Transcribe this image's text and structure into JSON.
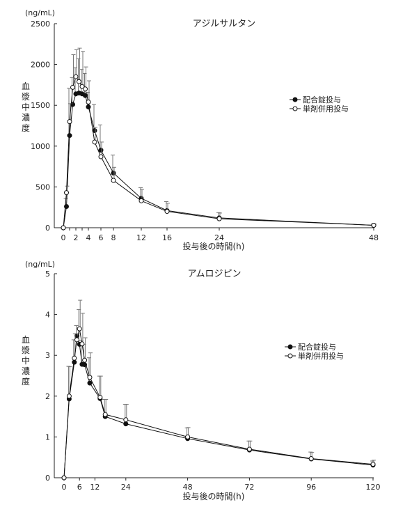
{
  "chart_data": [
    {
      "type": "line",
      "title": "アジルサルタン",
      "unit_label": "(ng/mL)",
      "ylabel": "血漿中濃度",
      "xlabel": "投与後の時間(h)",
      "xlim": [
        0,
        48
      ],
      "ylim": [
        0,
        2500
      ],
      "x_ticks": [
        0,
        1,
        2,
        3,
        4,
        6,
        8,
        12,
        16,
        24,
        48
      ],
      "x_tick_labels": [
        "0",
        "2",
        "4",
        "6",
        "8",
        "12",
        "16",
        "24",
        "48"
      ],
      "x_tick_label_values": [
        0,
        2,
        4,
        6,
        8,
        12,
        16,
        24,
        48
      ],
      "y_ticks": [
        0,
        500,
        1000,
        1500,
        2000,
        2500
      ],
      "y_tick_labels": [
        "0",
        "500",
        "1000",
        "1500",
        "2000",
        "2500"
      ],
      "legend_position": "right",
      "series": [
        {
          "name": "配合錠投与",
          "marker": "filled",
          "x": [
            0,
            0.5,
            1,
            1.5,
            2,
            2.5,
            3,
            3.5,
            4,
            5,
            6,
            8,
            12,
            16,
            24,
            48
          ],
          "y": [
            0,
            260,
            1130,
            1510,
            1640,
            1650,
            1640,
            1620,
            1480,
            1190,
            950,
            670,
            360,
            210,
            120,
            30
          ],
          "err": [
            0,
            100,
            580,
            330,
            320,
            420,
            300,
            270,
            180,
            320,
            310,
            220,
            130,
            110,
            65,
            15
          ]
        },
        {
          "name": "単剤併用投与",
          "marker": "open",
          "x": [
            0,
            0.5,
            1,
            1.5,
            2,
            2.5,
            3,
            3.5,
            4,
            5,
            6,
            8,
            12,
            16,
            24,
            48
          ],
          "y": [
            0,
            430,
            1300,
            1720,
            1850,
            1790,
            1730,
            1700,
            1540,
            1050,
            870,
            580,
            330,
            200,
            110,
            30
          ],
          "err": [
            0,
            80,
            220,
            400,
            330,
            410,
            430,
            270,
            260,
            180,
            180,
            160,
            140,
            100,
            70,
            15
          ]
        }
      ]
    },
    {
      "type": "line",
      "title": "アムロジピン",
      "unit_label": "(ng/mL)",
      "ylabel": "血漿中濃度",
      "xlabel": "投与後の時間(h)",
      "xlim": [
        0,
        120
      ],
      "ylim": [
        0,
        5
      ],
      "x_ticks": [
        0,
        6,
        12,
        24,
        48,
        72,
        96,
        120
      ],
      "x_tick_labels": [
        "0",
        "6",
        "12",
        "24",
        "48",
        "72",
        "96",
        "120"
      ],
      "x_tick_label_values": [
        0,
        6,
        12,
        24,
        48,
        72,
        96,
        120
      ],
      "y_ticks": [
        0,
        1,
        2,
        3,
        4,
        5
      ],
      "y_tick_labels": [
        "0",
        "1",
        "2",
        "3",
        "4",
        "5"
      ],
      "legend_position": "right",
      "series": [
        {
          "name": "配合錠投与",
          "marker": "filled",
          "x": [
            0,
            2,
            4,
            5,
            6,
            7,
            8,
            10,
            14,
            16,
            24,
            48,
            72,
            96,
            120
          ],
          "y": [
            0,
            1.93,
            2.83,
            3.48,
            3.27,
            2.78,
            2.77,
            2.32,
            1.94,
            1.5,
            1.32,
            0.96,
            0.68,
            0.46,
            0.31
          ],
          "err": [
            0,
            0.8,
            0.55,
            0.25,
            0.85,
            0.58,
            0.5,
            0.62,
            0.55,
            0.42,
            0.48,
            0.26,
            0.22,
            0.17,
            0.1
          ]
        },
        {
          "name": "単剤併用投与",
          "marker": "open",
          "x": [
            0,
            2,
            4,
            5,
            6,
            7,
            8,
            10,
            14,
            16,
            24,
            48,
            72,
            96,
            120
          ],
          "y": [
            0,
            2.0,
            2.93,
            3.38,
            3.65,
            3.28,
            2.88,
            2.46,
            1.97,
            1.55,
            1.42,
            1.0,
            0.7,
            0.47,
            0.33
          ],
          "err": [
            0,
            0.72,
            0.6,
            0.15,
            0.7,
            0.75,
            0.55,
            0.6,
            0.52,
            0.37,
            0.38,
            0.23,
            0.2,
            0.15,
            0.1
          ]
        }
      ]
    }
  ]
}
